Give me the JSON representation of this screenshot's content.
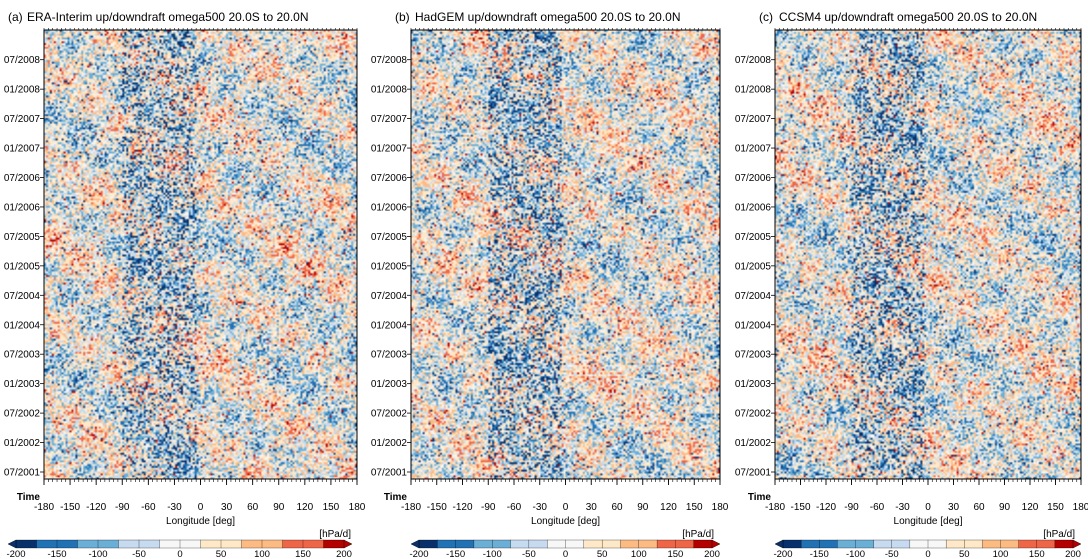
{
  "figure": {
    "time_axis_label": "Time",
    "x_axis_label": "Longitude [deg]",
    "colorbar_unit": "[hPa/d]"
  },
  "chart_data": [
    {
      "type": "heatmap",
      "panel_label": "(a)",
      "title": "ERA-Interim up/downdraft omega500  20.0S to 20.0N",
      "xlabel": "Longitude [deg]",
      "ylabel": "Time",
      "x_ticks": [
        -180,
        -150,
        -120,
        -90,
        -60,
        -30,
        0,
        30,
        60,
        90,
        120,
        150,
        180
      ],
      "y_ticks": [
        "07/2001",
        "01/2002",
        "07/2002",
        "01/2003",
        "07/2003",
        "01/2004",
        "07/2004",
        "01/2005",
        "07/2005",
        "01/2006",
        "07/2006",
        "01/2007",
        "07/2007",
        "01/2008",
        "07/2008"
      ],
      "xlim": [
        -180,
        180
      ],
      "colorbar_ticks": [
        -200,
        -150,
        -100,
        -50,
        0,
        50,
        100,
        150,
        200
      ],
      "colorbar_unit": "[hPa/d]",
      "colormap": [
        "#08306b",
        "#2171b5",
        "#6baed6",
        "#c6dbef",
        "#f7f7f7",
        "#fee8c8",
        "#fdbb84",
        "#ef6548",
        "#b30000"
      ]
    },
    {
      "type": "heatmap",
      "panel_label": "(b)",
      "title": "HadGEM up/downdraft omega500  20.0S to 20.0N",
      "xlabel": "Longitude [deg]",
      "ylabel": "Time",
      "x_ticks": [
        -180,
        -150,
        -120,
        -90,
        -60,
        -30,
        0,
        30,
        60,
        90,
        120,
        150,
        180
      ],
      "y_ticks": [
        "07/2001",
        "01/2002",
        "07/2002",
        "01/2003",
        "07/2003",
        "01/2004",
        "07/2004",
        "01/2005",
        "07/2005",
        "01/2006",
        "07/2006",
        "01/2007",
        "07/2007",
        "01/2008",
        "07/2008"
      ],
      "xlim": [
        -180,
        180
      ],
      "colorbar_ticks": [
        -200,
        -150,
        -100,
        -50,
        0,
        50,
        100,
        150,
        200
      ],
      "colorbar_unit": "[hPa/d]",
      "colormap": [
        "#08306b",
        "#2171b5",
        "#6baed6",
        "#c6dbef",
        "#f7f7f7",
        "#fee8c8",
        "#fdbb84",
        "#ef6548",
        "#b30000"
      ]
    },
    {
      "type": "heatmap",
      "panel_label": "(c)",
      "title": "CCSM4 up/downdraft omega500  20.0S to 20.0N",
      "xlabel": "Longitude [deg]",
      "ylabel": "Time",
      "x_ticks": [
        -180,
        -150,
        -120,
        -90,
        -60,
        -30,
        0,
        30,
        60,
        90,
        120,
        150,
        180
      ],
      "y_ticks": [
        "07/2001",
        "01/2002",
        "07/2002",
        "01/2003",
        "07/2003",
        "01/2004",
        "07/2004",
        "01/2005",
        "07/2005",
        "01/2006",
        "07/2006",
        "01/2007",
        "07/2007",
        "01/2008",
        "07/2008"
      ],
      "xlim": [
        -180,
        180
      ],
      "colorbar_ticks": [
        -200,
        -150,
        -100,
        -50,
        0,
        50,
        100,
        150,
        200
      ],
      "colorbar_unit": "[hPa/d]",
      "colormap": [
        "#08306b",
        "#2171b5",
        "#6baed6",
        "#c6dbef",
        "#f7f7f7",
        "#fee8c8",
        "#fdbb84",
        "#ef6548",
        "#b30000"
      ]
    }
  ]
}
